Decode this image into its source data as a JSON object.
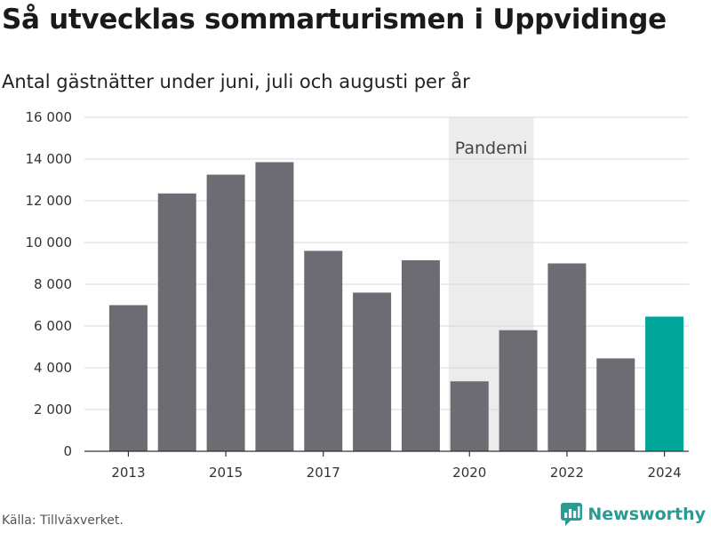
{
  "header": {
    "title": "Så utvecklas sommarturismen i Uppvidinge",
    "subtitle": "Antal gästnätter under juni, juli och augusti per år"
  },
  "footer": {
    "source": "Källa: Tillväxverket.",
    "brand": "Newsworthy",
    "brand_icon": "bar-chart-logo-icon"
  },
  "colors": {
    "bar": "#6d6c73",
    "highlight": "#00a59a",
    "band": "#ececec",
    "grid": "#d9d9d9",
    "brand": "#2a9b92"
  },
  "chart_data": {
    "type": "bar",
    "title": "Så utvecklas sommarturismen i Uppvidinge",
    "subtitle": "Antal gästnätter under juni, juli och augusti per år",
    "categories": [
      "2013",
      "2014",
      "2015",
      "2016",
      "2017",
      "2018",
      "2019",
      "2020",
      "2021",
      "2022",
      "2023",
      "2024"
    ],
    "values": [
      7000,
      12350,
      13250,
      13850,
      9600,
      7600,
      9150,
      3350,
      5800,
      9000,
      4450,
      6450
    ],
    "highlight": "2024",
    "x_tick_labels": [
      "2013",
      "2015",
      "2017",
      "2020",
      "2022",
      "2024"
    ],
    "y_tick_values": [
      0,
      2000,
      4000,
      6000,
      8000,
      10000,
      12000,
      14000,
      16000
    ],
    "y_tick_labels": [
      "0",
      "2 000",
      "4 000",
      "6 000",
      "8 000",
      "10 000",
      "12 000",
      "14 000",
      "16 000"
    ],
    "ylim": [
      0,
      16000
    ],
    "grid": true,
    "annotation": {
      "label": "Pandemi",
      "from": "2020",
      "to": "2021"
    }
  }
}
